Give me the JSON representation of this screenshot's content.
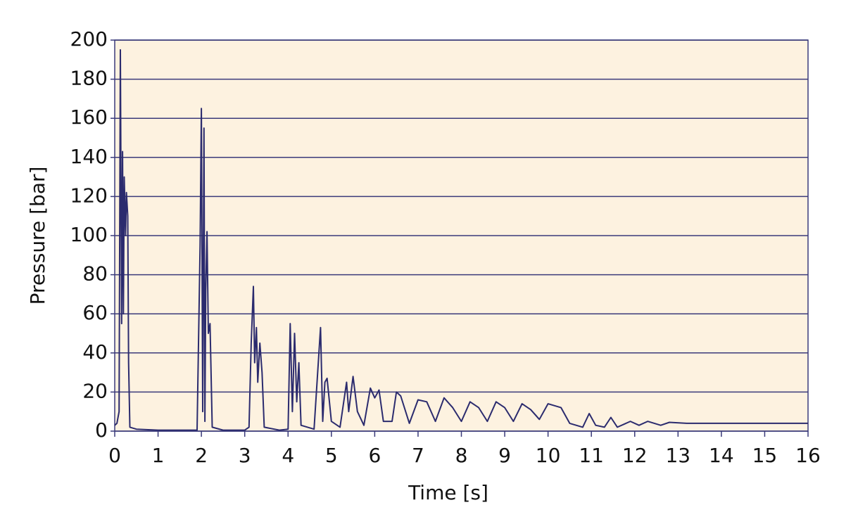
{
  "chart_data": {
    "type": "line",
    "x_label": "Time [s]",
    "y_label": "Pressure [bar]",
    "x": [
      0,
      0.05,
      0.1,
      0.13,
      0.16,
      0.18,
      0.2,
      0.22,
      0.25,
      0.27,
      0.3,
      0.32,
      0.35,
      0.5,
      1.0,
      1.5,
      1.9,
      1.97,
      2.0,
      2.03,
      2.06,
      2.08,
      2.1,
      2.13,
      2.16,
      2.2,
      2.25,
      2.5,
      3.0,
      3.1,
      3.15,
      3.2,
      3.23,
      3.27,
      3.3,
      3.35,
      3.4,
      3.45,
      3.8,
      4.0,
      4.05,
      4.1,
      4.15,
      4.2,
      4.25,
      4.3,
      4.6,
      4.75,
      4.8,
      4.85,
      4.9,
      5.0,
      5.2,
      5.35,
      5.4,
      5.5,
      5.6,
      5.75,
      5.9,
      6.0,
      6.1,
      6.2,
      6.4,
      6.5,
      6.6,
      6.8,
      7.0,
      7.2,
      7.4,
      7.6,
      7.8,
      8.0,
      8.2,
      8.4,
      8.6,
      8.8,
      9.0,
      9.2,
      9.4,
      9.6,
      9.8,
      10.0,
      10.3,
      10.5,
      10.8,
      10.95,
      11.1,
      11.3,
      11.45,
      11.6,
      11.9,
      12.1,
      12.3,
      12.6,
      12.8,
      13.2,
      14,
      15,
      16
    ],
    "series": [
      {
        "name": "Pressure",
        "color": "#2b2b6e",
        "values": [
          3,
          4,
          10,
          195,
          55,
          143,
          60,
          130,
          100,
          122,
          110,
          35,
          2,
          1,
          0.5,
          0.5,
          0.5,
          95,
          165,
          10,
          155,
          5,
          72,
          102,
          50,
          55,
          2,
          0.5,
          0.5,
          2,
          45,
          74,
          35,
          53,
          25,
          45,
          30,
          2,
          0.5,
          1,
          55,
          10,
          50,
          15,
          35,
          3,
          1,
          53,
          5,
          25,
          27,
          5,
          2,
          25,
          10,
          28,
          10,
          3,
          22,
          17,
          21,
          5,
          5,
          20,
          18,
          4,
          16,
          15,
          5,
          17,
          12,
          5,
          15,
          12,
          5,
          15,
          12,
          5,
          14,
          11,
          6,
          14,
          12,
          4,
          2,
          9,
          3,
          2,
          7,
          2,
          5,
          3,
          5,
          3,
          4.5,
          4,
          4,
          4,
          4
        ]
      }
    ],
    "xlim": [
      0,
      16
    ],
    "xticks": [
      0,
      1,
      2,
      3,
      4,
      5,
      6,
      7,
      8,
      9,
      10,
      11,
      12,
      13,
      14,
      15,
      16
    ],
    "ylim": [
      0,
      200
    ],
    "yticks": [
      0,
      20,
      40,
      60,
      80,
      100,
      120,
      140,
      160,
      180,
      200
    ],
    "grid": true,
    "background": "#fdf2e0"
  }
}
